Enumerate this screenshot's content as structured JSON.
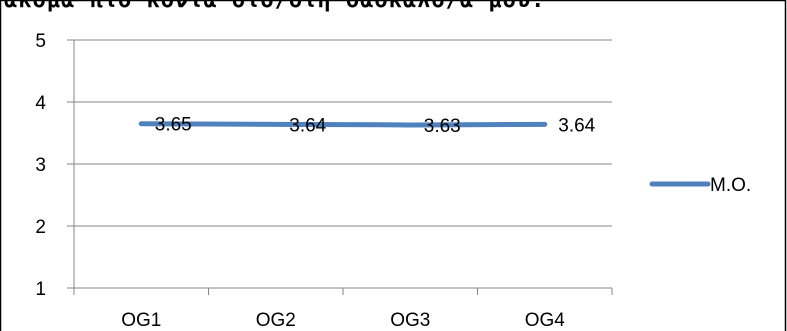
{
  "header_text": "ακόμα πιο κοντά στο/στη δάσκαλο/α μου.",
  "chart_data": {
    "type": "line",
    "categories": [
      "OG1",
      "OG2",
      "OG3",
      "OG4"
    ],
    "series": [
      {
        "name": "M.O.",
        "values": [
          3.65,
          3.64,
          3.63,
          3.64
        ],
        "color": "#4f81bd"
      }
    ],
    "data_labels": [
      "3.65",
      "3.64",
      "3.63",
      "3.64"
    ],
    "y_ticks": [
      "1",
      "2",
      "3",
      "4",
      "5"
    ],
    "ylim": [
      1,
      5
    ],
    "grid": true,
    "legend_position": "right"
  }
}
